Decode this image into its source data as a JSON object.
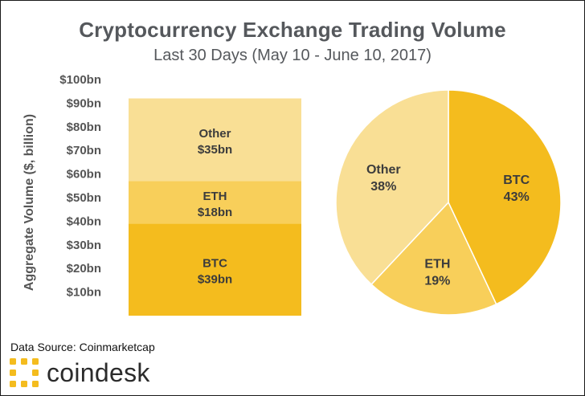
{
  "header": {
    "title": "Cryptocurrency Exchange Trading Volume",
    "subtitle": "Last 30 Days (May 10 - June 10, 2017)"
  },
  "footer": {
    "source": "Data Source: Coinmarketcap",
    "brand": "coindesk"
  },
  "colors": {
    "btc": "#f4bc1e",
    "eth": "#f8cf5a",
    "other": "#f9df95",
    "logo": "#f4bc1e",
    "axis_text": "#555555"
  },
  "chart_data": [
    {
      "type": "bar",
      "stacked": true,
      "categories": [
        ""
      ],
      "series": [
        {
          "name": "BTC",
          "values": [
            39
          ],
          "label": "$39bn"
        },
        {
          "name": "ETH",
          "values": [
            18
          ],
          "label": "$18bn"
        },
        {
          "name": "Other",
          "values": [
            35
          ],
          "label": "$35bn"
        }
      ],
      "ylabel": "Aggregate Volume ($, billion)",
      "ylim": [
        0,
        100
      ],
      "yticks": [
        10,
        20,
        30,
        40,
        50,
        60,
        70,
        80,
        90,
        100
      ],
      "ytick_labels": [
        "$10bn",
        "$20bn",
        "$30bn",
        "$40bn",
        "$50bn",
        "$60bn",
        "$70bn",
        "$80bn",
        "$90bn",
        "$100bn"
      ],
      "grid": false
    },
    {
      "type": "pie",
      "slices": [
        {
          "label": "BTC",
          "value": 43,
          "display": "43%"
        },
        {
          "label": "ETH",
          "value": 19,
          "display": "19%"
        },
        {
          "label": "Other",
          "value": 38,
          "display": "38%"
        }
      ]
    }
  ]
}
